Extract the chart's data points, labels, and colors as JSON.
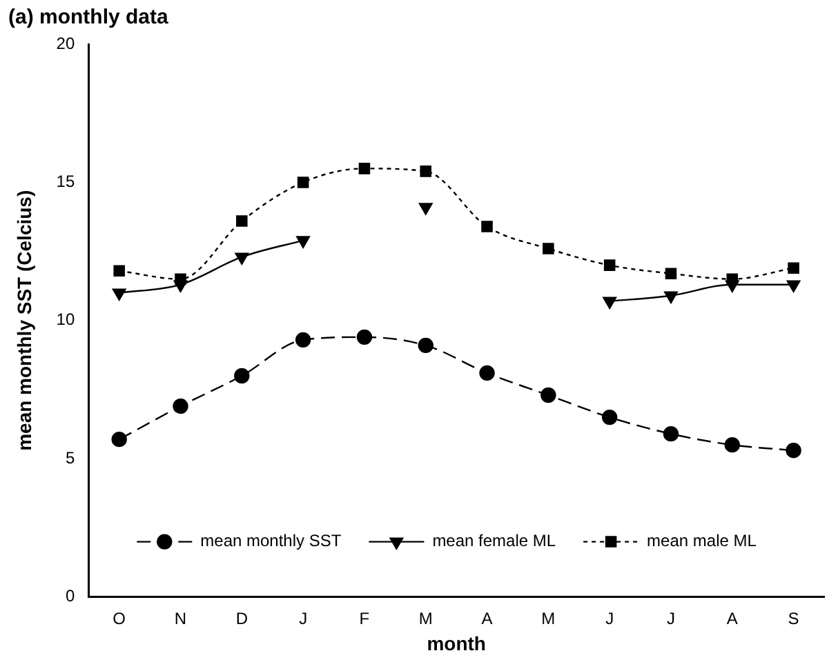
{
  "chart_data": {
    "type": "line",
    "title": "(a) monthly data",
    "xlabel": "month",
    "ylabel": "mean monthly SST (Celcius)",
    "categories": [
      "O",
      "N",
      "D",
      "J",
      "F",
      "M",
      "A",
      "M",
      "J",
      "J",
      "A",
      "S"
    ],
    "series": [
      {
        "name": "mean monthly SST",
        "color": "#000000",
        "marker": "circle",
        "line_style": "dashed",
        "values": [
          5.7,
          6.9,
          8.0,
          9.3,
          9.4,
          9.1,
          8.1,
          7.3,
          6.5,
          5.9,
          5.5,
          5.3
        ]
      },
      {
        "name": "mean female ML",
        "color": "#000000",
        "marker": "triangle",
        "line_style": "solid",
        "values": [
          11.0,
          11.3,
          12.3,
          12.9,
          null,
          14.1,
          null,
          null,
          10.7,
          10.9,
          11.3,
          11.3
        ]
      },
      {
        "name": "mean male ML",
        "color": "#000000",
        "marker": "square",
        "line_style": "dotted",
        "values": [
          11.8,
          11.5,
          13.6,
          15.0,
          15.5,
          15.4,
          13.4,
          12.6,
          12.0,
          11.7,
          11.5,
          11.9
        ]
      }
    ],
    "ylim": [
      0,
      20
    ],
    "yticks": [
      0,
      5,
      10,
      15,
      20
    ],
    "grid": false,
    "legend": "bottom"
  }
}
